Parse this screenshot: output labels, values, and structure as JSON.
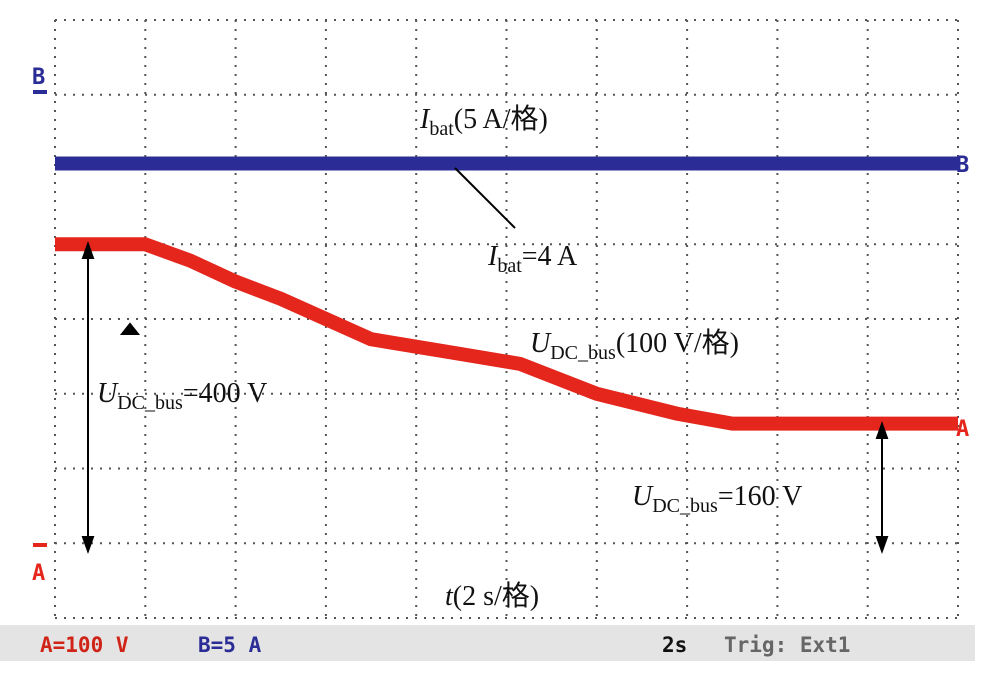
{
  "chart_data": {
    "type": "line",
    "xlim": [
      0,
      20
    ],
    "ylim": [
      -100,
      700
    ],
    "y2lim": [
      -26.4,
      13.6
    ],
    "grid": true,
    "x": [
      0,
      2,
      3,
      4,
      5,
      7,
      9,
      10.3,
      12,
      13.8,
      15,
      20
    ],
    "series": [
      {
        "name": "UDC_bus",
        "color": "#e4261c",
        "values": [
          400,
          400,
          378,
          350,
          327,
          273,
          253,
          240,
          200,
          173,
          160,
          160
        ]
      },
      {
        "name": "Ibat",
        "color": "#2b2c95",
        "axis": "y2",
        "values": [
          4,
          4,
          4,
          4,
          4,
          4,
          4,
          4,
          4,
          4,
          4,
          4
        ]
      }
    ],
    "annotations": [
      {
        "italic": "I",
        "sub": "bat",
        "text": "(5 A/格)"
      },
      {
        "italic": "I",
        "sub": "bat",
        "text": "=4 A"
      },
      {
        "italic": "U",
        "sub": "DC_bus",
        "text": "(100 V/格)"
      },
      {
        "italic": "U",
        "sub": "DC_bus",
        "text": "=400 V"
      },
      {
        "italic": "U",
        "sub": "DC_bus",
        "text": "=160 V"
      },
      {
        "italic": "t",
        "text": "(2 s/格)"
      }
    ],
    "channel_markers": {
      "a": "A",
      "b": "B"
    }
  },
  "status_bar": {
    "ch_a": "A=100 V",
    "ch_b": "B=5 A",
    "timebase": "2s",
    "trigger": "Trig: Ext1"
  }
}
